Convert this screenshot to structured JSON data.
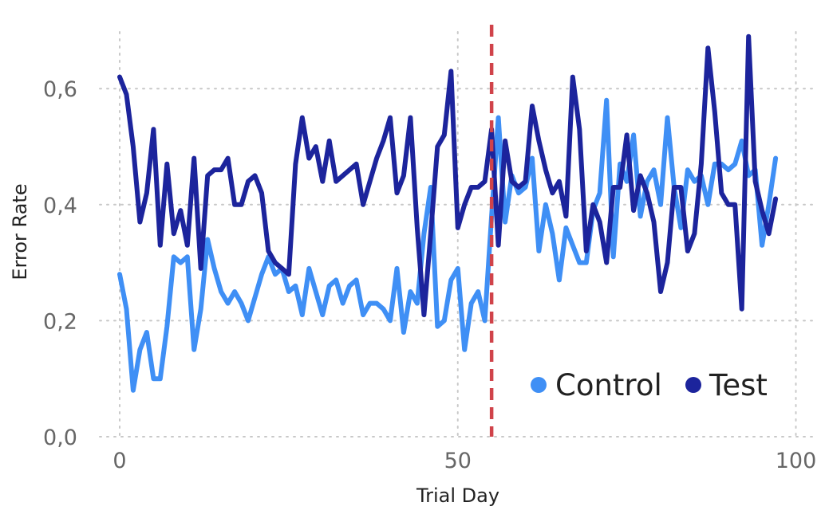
{
  "chart_data": {
    "type": "line",
    "title": "",
    "xlabel": "Trial Day",
    "ylabel": "Error Rate",
    "xlim": [
      -3,
      101
    ],
    "ylim": [
      0,
      0.7
    ],
    "xticks": [
      0,
      50,
      100
    ],
    "yticks": [
      0.0,
      0.2,
      0.4,
      0.6
    ],
    "xtick_labels": [
      "0",
      "50",
      "100"
    ],
    "ytick_labels": [
      "0,0",
      "0,2",
      "0,4",
      "0,6"
    ],
    "grid": true,
    "legend_position": "bottom-right",
    "reference_line": {
      "x": 55,
      "style": "dashed",
      "color": "#d0434a"
    },
    "colors": {
      "Control": "#3f8ff5",
      "Test": "#1c249c",
      "tick_text": "#666666",
      "grid": "#c8c8c8"
    },
    "series": [
      {
        "name": "Control",
        "x": [
          0,
          1,
          2,
          3,
          4,
          5,
          6,
          7,
          8,
          9,
          10,
          11,
          12,
          13,
          14,
          15,
          16,
          17,
          18,
          19,
          20,
          21,
          22,
          23,
          24,
          25,
          26,
          27,
          28,
          29,
          30,
          31,
          32,
          33,
          34,
          35,
          36,
          37,
          38,
          39,
          40,
          41,
          42,
          43,
          44,
          45,
          46,
          47,
          48,
          49,
          50,
          51,
          52,
          53,
          54,
          55,
          56,
          57,
          58,
          59,
          60,
          61,
          62,
          63,
          64,
          65,
          66,
          67,
          68,
          69,
          70,
          71,
          72,
          73,
          74,
          75,
          76,
          77,
          78,
          79,
          80,
          81,
          82,
          83,
          84,
          85,
          86,
          87,
          88,
          89,
          90,
          91,
          92,
          93,
          94,
          95,
          96,
          97
        ],
        "values": [
          0.28,
          0.22,
          0.08,
          0.15,
          0.18,
          0.1,
          0.1,
          0.19,
          0.31,
          0.3,
          0.31,
          0.15,
          0.22,
          0.34,
          0.29,
          0.25,
          0.23,
          0.25,
          0.23,
          0.2,
          0.24,
          0.28,
          0.31,
          0.28,
          0.29,
          0.25,
          0.26,
          0.21,
          0.29,
          0.25,
          0.21,
          0.26,
          0.27,
          0.23,
          0.26,
          0.27,
          0.21,
          0.23,
          0.23,
          0.22,
          0.2,
          0.29,
          0.18,
          0.25,
          0.23,
          0.35,
          0.43,
          0.19,
          0.2,
          0.27,
          0.29,
          0.15,
          0.23,
          0.25,
          0.2,
          0.38,
          0.55,
          0.37,
          0.45,
          0.42,
          0.43,
          0.48,
          0.32,
          0.4,
          0.35,
          0.27,
          0.36,
          0.33,
          0.3,
          0.3,
          0.39,
          0.42,
          0.58,
          0.31,
          0.47,
          0.44,
          0.52,
          0.38,
          0.44,
          0.46,
          0.4,
          0.55,
          0.43,
          0.36,
          0.46,
          0.44,
          0.45,
          0.4,
          0.47,
          0.47,
          0.46,
          0.47,
          0.51,
          0.45,
          0.46,
          0.33,
          0.4,
          0.48
        ]
      },
      {
        "name": "Test",
        "x": [
          0,
          1,
          2,
          3,
          4,
          5,
          6,
          7,
          8,
          9,
          10,
          11,
          12,
          13,
          14,
          15,
          16,
          17,
          18,
          19,
          20,
          21,
          22,
          23,
          24,
          25,
          26,
          27,
          28,
          29,
          30,
          31,
          32,
          33,
          34,
          35,
          36,
          37,
          38,
          39,
          40,
          41,
          42,
          43,
          44,
          45,
          46,
          47,
          48,
          49,
          50,
          51,
          52,
          53,
          54,
          55,
          56,
          57,
          58,
          59,
          60,
          61,
          62,
          63,
          64,
          65,
          66,
          67,
          68,
          69,
          70,
          71,
          72,
          73,
          74,
          75,
          76,
          77,
          78,
          79,
          80,
          81,
          82,
          83,
          84,
          85,
          86,
          87,
          88,
          89,
          90,
          91,
          92,
          93,
          94,
          95,
          96,
          97
        ],
        "values": [
          0.62,
          0.59,
          0.5,
          0.37,
          0.42,
          0.53,
          0.33,
          0.47,
          0.35,
          0.39,
          0.33,
          0.48,
          0.29,
          0.45,
          0.46,
          0.46,
          0.48,
          0.4,
          0.4,
          0.44,
          0.45,
          0.42,
          0.32,
          0.3,
          0.29,
          0.28,
          0.47,
          0.55,
          0.48,
          0.5,
          0.44,
          0.51,
          0.44,
          0.45,
          0.46,
          0.47,
          0.4,
          0.44,
          0.48,
          0.51,
          0.55,
          0.42,
          0.45,
          0.55,
          0.36,
          0.21,
          0.35,
          0.5,
          0.52,
          0.63,
          0.36,
          0.4,
          0.43,
          0.43,
          0.44,
          0.53,
          0.33,
          0.51,
          0.44,
          0.43,
          0.44,
          0.57,
          0.51,
          0.46,
          0.42,
          0.44,
          0.38,
          0.62,
          0.53,
          0.32,
          0.4,
          0.37,
          0.3,
          0.43,
          0.43,
          0.52,
          0.39,
          0.45,
          0.42,
          0.37,
          0.25,
          0.3,
          0.43,
          0.43,
          0.32,
          0.35,
          0.47,
          0.67,
          0.56,
          0.42,
          0.4,
          0.4,
          0.22,
          0.69,
          0.44,
          0.39,
          0.35,
          0.41
        ]
      }
    ]
  }
}
